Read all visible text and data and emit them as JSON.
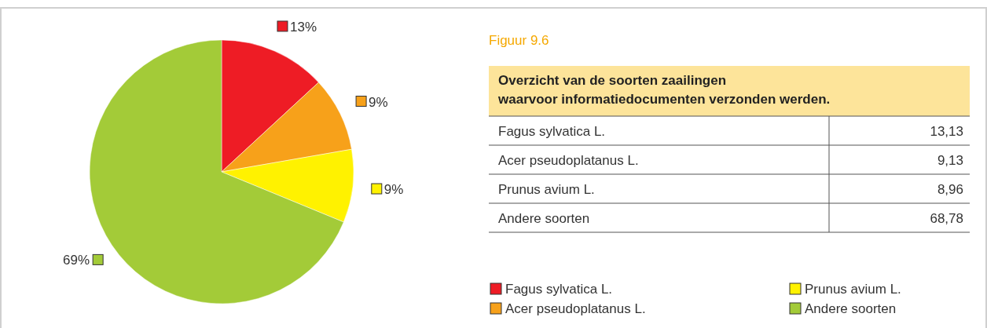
{
  "chart_data": {
    "type": "pie",
    "title": "Figuur 9.6",
    "subtitle": "Overzicht van de soorten zaailingen\nwaarvoor informatiedocumenten verzonden werden.",
    "categories": [
      "Fagus sylvatica L.",
      "Acer pseudoplatanus L.",
      "Prunus avium L.",
      "Andere soorten"
    ],
    "values": [
      13.13,
      9.13,
      8.96,
      68.78
    ],
    "value_labels": [
      "13%",
      "9%",
      "9%",
      "69%"
    ],
    "annotations": [
      "13,13",
      "9,13",
      "8,96",
      "68,78"
    ],
    "colors": [
      "#ee1c25",
      "#f7a11a",
      "#fff200",
      "#a3cb38"
    ],
    "legend": "right"
  }
}
